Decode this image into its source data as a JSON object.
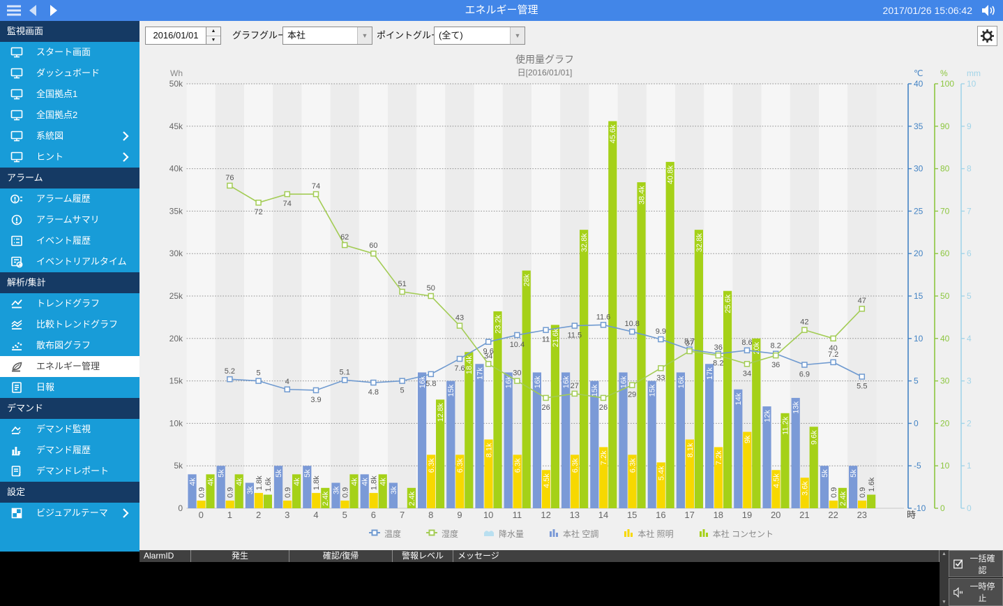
{
  "top_bar": {
    "title": "エネルギー管理",
    "datetime": "2017/01/26 15:06:42"
  },
  "sidebar": {
    "sections": [
      {
        "label": "監視画面",
        "items": [
          {
            "label": "スタート画面",
            "icon": "monitor"
          },
          {
            "label": "ダッシュボード",
            "icon": "monitor"
          },
          {
            "label": "全国拠点1",
            "icon": "monitor"
          },
          {
            "label": "全国拠点2",
            "icon": "monitor"
          },
          {
            "label": "系統図",
            "icon": "monitor",
            "chevron": true
          },
          {
            "label": "ヒント",
            "icon": "monitor",
            "chevron": true
          }
        ]
      },
      {
        "label": "アラーム",
        "items": [
          {
            "label": "アラーム履歴",
            "icon": "alarm-history"
          },
          {
            "label": "アラームサマリ",
            "icon": "alarm-summary"
          },
          {
            "label": "イベント履歴",
            "icon": "event-history"
          },
          {
            "label": "イベントリアルタイム",
            "icon": "event-realtime"
          }
        ]
      },
      {
        "label": "解析/集計",
        "items": [
          {
            "label": "トレンドグラフ",
            "icon": "trend"
          },
          {
            "label": "比較トレンドグラフ",
            "icon": "compare-trend"
          },
          {
            "label": "散布図グラフ",
            "icon": "scatter"
          },
          {
            "label": "エネルギー管理",
            "icon": "energy",
            "selected": true
          },
          {
            "label": "日報",
            "icon": "report"
          }
        ]
      },
      {
        "label": "デマンド",
        "items": [
          {
            "label": "デマンド監視",
            "icon": "demand-watch"
          },
          {
            "label": "デマンド履歴",
            "icon": "demand-history"
          },
          {
            "label": "デマンドレポート",
            "icon": "demand-report"
          }
        ]
      },
      {
        "label": "設定",
        "items": [
          {
            "label": "ビジュアルテーマ",
            "icon": "theme",
            "chevron": true
          }
        ]
      }
    ]
  },
  "toolbar": {
    "date_value": "2016/01/01",
    "graph_group_label": "グラフグループ:",
    "graph_group_value": "本社",
    "point_group_label": "ポイントグループ:",
    "point_group_value": "(全て)"
  },
  "chart_data": {
    "type": "bar+line",
    "title": "使用量グラフ",
    "subtitle": "日[2016/01/01]",
    "x_label": "時",
    "hours": [
      0,
      1,
      2,
      3,
      4,
      5,
      6,
      7,
      8,
      9,
      10,
      11,
      12,
      13,
      14,
      15,
      16,
      17,
      18,
      19,
      20,
      21,
      22,
      23
    ],
    "y_left": {
      "unit": "Wh",
      "min": 0,
      "max": 50000,
      "step": 5000
    },
    "y_right": [
      {
        "unit": "℃",
        "min": -10,
        "max": 40,
        "step": 5,
        "color": "#4383c4"
      },
      {
        "unit": "%",
        "min": 0,
        "max": 100,
        "step": 10,
        "color": "#8cc63f"
      },
      {
        "unit": "mm",
        "min": 0,
        "max": 10,
        "step": 1,
        "color": "#a2d4e8"
      }
    ],
    "series": [
      {
        "name": "本社 空調",
        "type": "bar",
        "axis": "Wh",
        "color": "#7b9ad7",
        "values": [
          4000,
          5000,
          3000,
          5000,
          5000,
          3000,
          4000,
          3000,
          16000,
          15000,
          17000,
          16000,
          16000,
          16000,
          15000,
          16000,
          15000,
          16000,
          17000,
          14000,
          12000,
          13000,
          5000,
          5000
        ],
        "labels": [
          "4k",
          "5k",
          "3k",
          "5k",
          "5k",
          "3k",
          "4k",
          "3k",
          "16k",
          "15k",
          "17k",
          "16k",
          "16k",
          "16k",
          "15k",
          "16k",
          "15k",
          "16k",
          "17k",
          "14k",
          "12k",
          "13k",
          "5k",
          "5k"
        ]
      },
      {
        "name": "本社 照明",
        "type": "bar",
        "axis": "Wh",
        "color": "#f7d800",
        "values": [
          900,
          900,
          1800,
          900,
          1800,
          900,
          1800,
          0,
          6300,
          6300,
          8100,
          6300,
          4500,
          6300,
          7200,
          6300,
          5400,
          8100,
          7200,
          9000,
          4500,
          3600,
          900,
          900
        ],
        "labels": [
          "0.9",
          "0.9",
          "1.8k",
          "0.9",
          "1.8k",
          "0.9",
          "1.8k",
          null,
          "6.3k",
          "6.3k",
          "8.1k",
          "6.3k",
          "4.5k",
          "6.3k",
          "7.2k",
          "6.3k",
          "5.4k",
          "8.1k",
          "7.2k",
          "9k",
          "4.5k",
          "3.6k",
          "0.9",
          "0.9"
        ]
      },
      {
        "name": "本社 コンセント",
        "type": "bar",
        "axis": "Wh",
        "color": "#a5d118",
        "values": [
          4000,
          4000,
          1600,
          4000,
          2400,
          4000,
          4000,
          2400,
          12800,
          18400,
          23200,
          28000,
          21600,
          32800,
          45600,
          38400,
          40800,
          32800,
          25600,
          20000,
          11200,
          9600,
          2400,
          1600
        ],
        "labels": [
          "4k",
          "4k",
          "1.6k",
          "4k",
          "2.4k",
          "4k",
          "4k",
          "2.4k",
          "12.8k",
          "18.4k",
          "23.2k",
          "28k",
          "21.6k",
          "32.8k",
          "45.6k",
          "38.4k",
          "40.8k",
          "32.8k",
          "25.6k",
          "20k",
          "11.2k",
          "9.6k",
          "2.4k",
          "1.6k"
        ]
      },
      {
        "name": "温度",
        "type": "line",
        "axis": "℃",
        "color": "#6f9ad0",
        "x": [
          1,
          2,
          3,
          4,
          5,
          6,
          7,
          8,
          9,
          10,
          11,
          12,
          13,
          14,
          15,
          16,
          17,
          18,
          19,
          20,
          21,
          22,
          23
        ],
        "values": [
          5.2,
          5,
          4,
          3.9,
          5.1,
          4.8,
          5,
          5.8,
          7.6,
          9.6,
          10.4,
          11,
          11.5,
          11.6,
          10.8,
          9.9,
          8.7,
          8.2,
          8.6,
          8.2,
          6.9,
          7.2,
          5.5
        ],
        "labels": [
          "5.2",
          "5",
          "4",
          "3.9",
          "5.1",
          "4.8",
          "5",
          "5.8",
          "7.6",
          "9.6",
          "10.4",
          "11",
          "11.5",
          "11.6",
          "10.8",
          "9.9",
          "8.7",
          "8.2",
          "8.6",
          "8.2",
          "6.9",
          "7.2",
          "5.5"
        ],
        "label_pos": [
          "a",
          "a",
          "a",
          "b",
          "a",
          "b",
          "b",
          "b",
          "b",
          "b",
          "b",
          "b",
          "b",
          "a",
          "a",
          "a",
          "a",
          "b",
          "a",
          "a",
          "b",
          "a",
          "b"
        ]
      },
      {
        "name": "湿度",
        "type": "line",
        "axis": "%",
        "color": "#a3cc55",
        "x": [
          1,
          2,
          3,
          4,
          5,
          6,
          7,
          8,
          9,
          10,
          11,
          12,
          13,
          14,
          15,
          16,
          17,
          18,
          19,
          20,
          21,
          22,
          23
        ],
        "values": [
          76,
          72,
          74,
          74,
          62,
          60,
          51,
          50,
          43,
          34,
          30,
          26,
          27,
          26,
          29,
          33,
          37,
          36,
          34,
          36,
          42,
          40,
          47
        ],
        "labels": [
          "76",
          "72",
          "74",
          "74",
          "62",
          "60",
          "51",
          "50",
          "43",
          "34",
          "30",
          "26",
          "27",
          "26",
          "29",
          "33",
          "37",
          "36",
          "34",
          "36",
          "42",
          "40",
          "47"
        ],
        "label_pos": [
          "a",
          "b",
          "b",
          "a",
          "a",
          "a",
          "a",
          "a",
          "a",
          "a",
          "a",
          "b",
          "a",
          "b",
          "b",
          "b",
          "a",
          "a",
          "b",
          "b",
          "a",
          "b",
          "a"
        ]
      },
      {
        "name": "降水量",
        "type": "area",
        "axis": "mm",
        "color": "#b9dff0",
        "values": []
      }
    ],
    "legend": [
      {
        "label": "温度",
        "icon": "line-blue"
      },
      {
        "label": "湿度",
        "icon": "line-green"
      },
      {
        "label": "降水量",
        "icon": "area-lightblue"
      },
      {
        "label": "本社 空調",
        "icon": "bars-blue"
      },
      {
        "label": "本社 照明",
        "icon": "bars-yellow"
      },
      {
        "label": "本社 コンセント",
        "icon": "bars-green"
      }
    ]
  },
  "alarm_table": {
    "columns": [
      "AlarmID",
      "発生",
      "確認/復帰",
      "警報レベル",
      "メッセージ"
    ],
    "rows": []
  },
  "action_buttons": [
    {
      "label": "一括確認",
      "icon": "checkbox"
    },
    {
      "label": "一時停止",
      "icon": "speaker-pause"
    }
  ]
}
